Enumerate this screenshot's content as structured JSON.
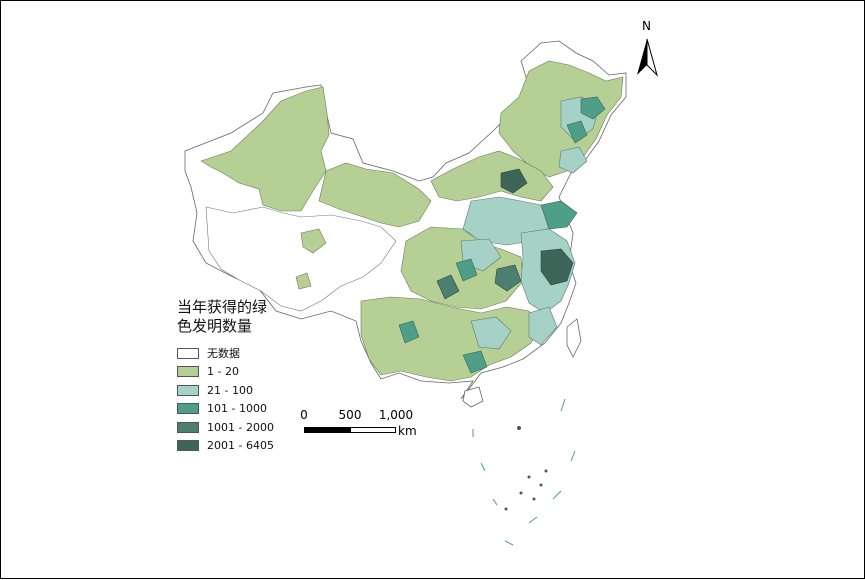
{
  "legend": {
    "title_line1": "当年获得的绿",
    "title_line2": "色发明数量",
    "items": [
      {
        "label": "无数据",
        "color": "#ffffff"
      },
      {
        "label": "1 - 20",
        "color": "#b5cf94"
      },
      {
        "label": "21 - 100",
        "color": "#a6d1c7"
      },
      {
        "label": "101 - 1000",
        "color": "#4f9e88"
      },
      {
        "label": "1001 - 2000",
        "color": "#4d7f70"
      },
      {
        "label": "2001 - 6405",
        "color": "#3d6558"
      }
    ]
  },
  "scalebar": {
    "tick0": "0",
    "tick1": "500",
    "tick2": "1,000",
    "unit": "km"
  },
  "north_arrow": {
    "label": "N",
    "icon": "north-arrow-icon"
  }
}
